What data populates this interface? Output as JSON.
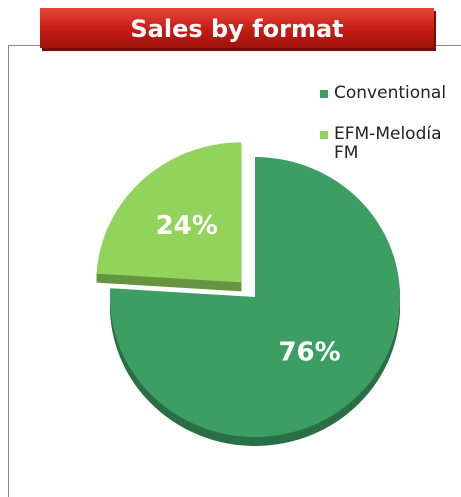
{
  "chart_data": {
    "type": "pie",
    "title": "Sales by format",
    "categories": [
      "Conventional",
      "EFM-Melodía FM"
    ],
    "values": [
      76,
      24
    ],
    "value_labels": [
      "76%",
      "24%"
    ],
    "colors": [
      "#3d9e64",
      "#92d35c"
    ],
    "explode": [
      false,
      true
    ],
    "legend": "top-right"
  }
}
